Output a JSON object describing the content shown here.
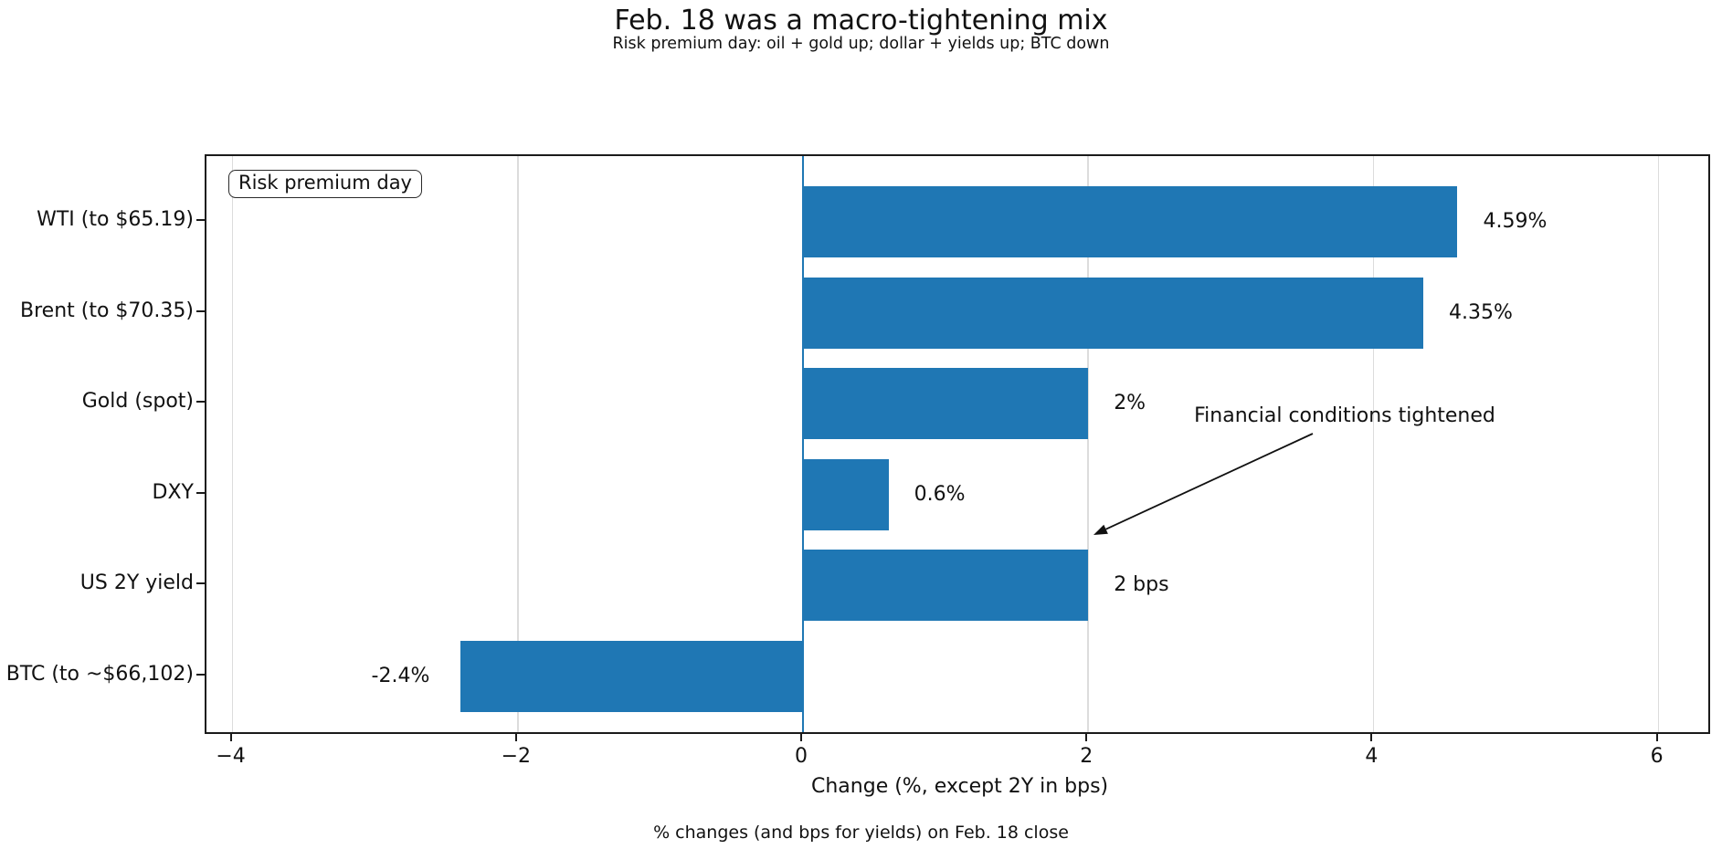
{
  "title": "Feb. 18 was a macro-tightening mix",
  "subtitle": "Risk premium day: oil + gold up; dollar + yields up; BTC down",
  "footer": "% changes (and bps for yields) on Feb. 18 close",
  "legend_box_label": "Risk premium day",
  "annotation": {
    "text": "Financial conditions tightened"
  },
  "colors": {
    "bar": "#1f77b4",
    "zero_line": "#1f77b4",
    "grid": "#dcdcdc",
    "axis": "#1a1a1a",
    "background": "#ffffff"
  },
  "chart_data": {
    "type": "bar",
    "orientation": "horizontal",
    "title": "Feb. 18 was a macro-tightening mix",
    "subtitle": "Risk premium day: oil + gold up; dollar + yields up; BTC down",
    "xlabel": "Change (%, except 2Y in bps)",
    "ylabel": "",
    "caption": "% changes (and bps for yields) on Feb. 18 close",
    "categories": [
      "WTI (to $65.19)",
      "Brent (to $70.35)",
      "Gold (spot)",
      "DXY",
      "US 2Y yield",
      "BTC (to ~$66,102)"
    ],
    "values": [
      4.59,
      4.35,
      2,
      0.6,
      2,
      -2.4
    ],
    "value_labels": [
      "4.59%",
      "4.35%",
      "2%",
      "0.6%",
      "2 bps",
      "-2.4%"
    ],
    "units_note": "all values are % change except US 2Y yield which is in bps",
    "xlim": [
      -4.18,
      6.38
    ],
    "xtick_values": [
      -4,
      -2,
      0,
      2,
      4,
      6
    ],
    "xtick_labels": [
      "−4",
      "−2",
      "0",
      "2",
      "4",
      "6"
    ],
    "grid": "vertical-on",
    "zero_line": true,
    "annotations": [
      "Risk premium day",
      "Financial conditions tightened"
    ]
  }
}
